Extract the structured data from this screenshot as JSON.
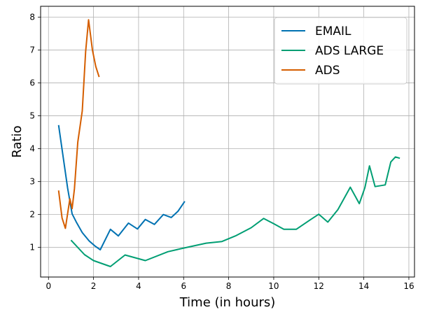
{
  "chart_data": {
    "type": "line",
    "title": "",
    "xlabel": "Time (in hours)",
    "ylabel": "Ratio",
    "xlim": [
      -0.35,
      16.25
    ],
    "ylim": [
      0.1,
      8.33
    ],
    "xticks": [
      0,
      2,
      4,
      6,
      8,
      10,
      12,
      14,
      16
    ],
    "yticks": [
      1,
      2,
      3,
      4,
      5,
      6,
      7,
      8
    ],
    "grid": true,
    "legend_position": "top-right",
    "series": [
      {
        "name": "EMAIL",
        "color": "#0072b2",
        "points": [
          [
            0.45,
            4.72
          ],
          [
            0.65,
            3.75
          ],
          [
            0.85,
            2.8
          ],
          [
            1.05,
            2.02
          ],
          [
            1.25,
            1.75
          ],
          [
            1.5,
            1.45
          ],
          [
            1.8,
            1.2
          ],
          [
            2.05,
            1.05
          ],
          [
            2.3,
            0.93
          ],
          [
            2.75,
            1.55
          ],
          [
            3.1,
            1.35
          ],
          [
            3.55,
            1.74
          ],
          [
            3.95,
            1.56
          ],
          [
            4.3,
            1.85
          ],
          [
            4.7,
            1.7
          ],
          [
            5.1,
            2.0
          ],
          [
            5.45,
            1.91
          ],
          [
            5.75,
            2.1
          ],
          [
            6.05,
            2.4
          ]
        ]
      },
      {
        "name": "ADS LARGE",
        "color": "#009e73",
        "points": [
          [
            1.0,
            1.22
          ],
          [
            1.6,
            0.78
          ],
          [
            2.0,
            0.6
          ],
          [
            2.75,
            0.42
          ],
          [
            3.4,
            0.77
          ],
          [
            4.3,
            0.6
          ],
          [
            5.3,
            0.87
          ],
          [
            6.0,
            0.98
          ],
          [
            7.0,
            1.13
          ],
          [
            7.7,
            1.18
          ],
          [
            8.3,
            1.35
          ],
          [
            9.0,
            1.6
          ],
          [
            9.55,
            1.88
          ],
          [
            10.0,
            1.72
          ],
          [
            10.45,
            1.55
          ],
          [
            11.0,
            1.55
          ],
          [
            11.6,
            1.83
          ],
          [
            12.0,
            2.01
          ],
          [
            12.4,
            1.77
          ],
          [
            12.85,
            2.15
          ],
          [
            13.4,
            2.83
          ],
          [
            13.8,
            2.33
          ],
          [
            14.05,
            2.82
          ],
          [
            14.25,
            3.48
          ],
          [
            14.5,
            2.85
          ],
          [
            14.95,
            2.9
          ],
          [
            15.2,
            3.6
          ],
          [
            15.4,
            3.75
          ],
          [
            15.6,
            3.71
          ]
        ]
      },
      {
        "name": "ADS",
        "color": "#d55e00",
        "points": [
          [
            0.45,
            2.73
          ],
          [
            0.6,
            1.9
          ],
          [
            0.75,
            1.58
          ],
          [
            0.95,
            2.48
          ],
          [
            1.05,
            2.18
          ],
          [
            1.15,
            2.78
          ],
          [
            1.3,
            4.2
          ],
          [
            1.5,
            5.15
          ],
          [
            1.65,
            6.95
          ],
          [
            1.78,
            7.92
          ],
          [
            1.95,
            7.0
          ],
          [
            2.1,
            6.5
          ],
          [
            2.25,
            6.18
          ]
        ]
      }
    ]
  }
}
